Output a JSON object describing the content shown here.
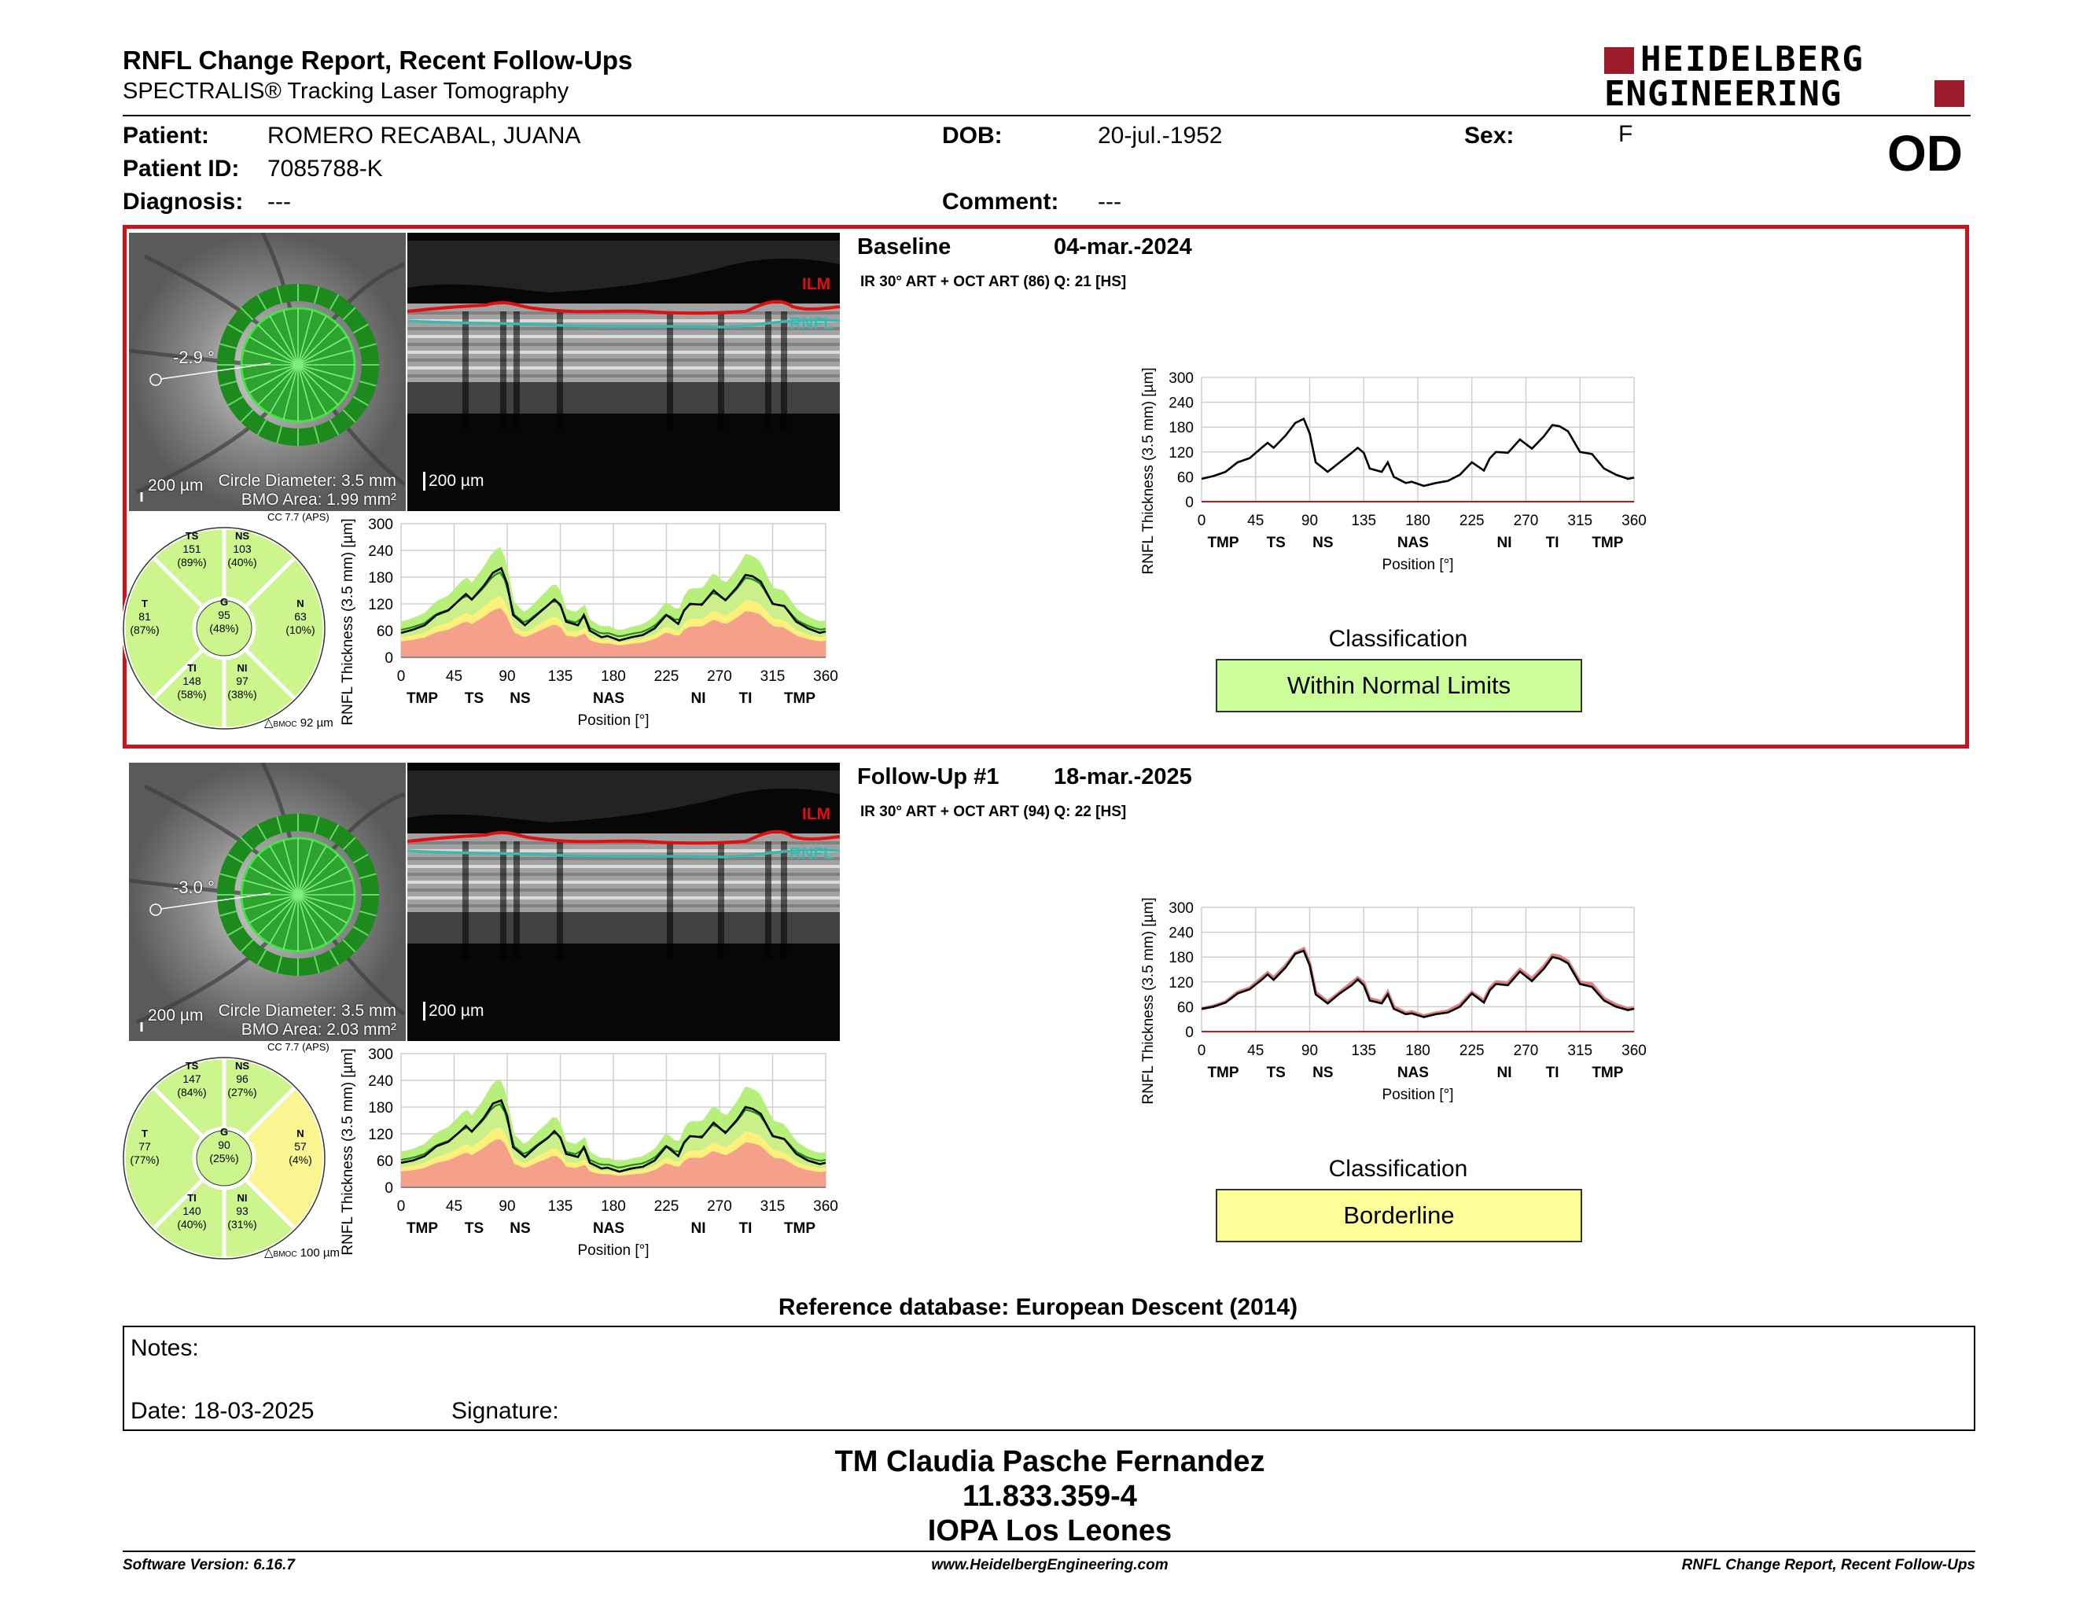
{
  "header": {
    "title": "RNFL Change Report, Recent Follow-Ups",
    "subtitle": "SPECTRALIS® Tracking Laser Tomography",
    "logo_line1": "HEIDELBERG",
    "logo_line2": "ENGINEERING",
    "eye": "OD"
  },
  "patient": {
    "patient_label": "Patient:",
    "patient_value": "ROMERO RECABAL, JUANA",
    "id_label": "Patient ID:",
    "id_value": "7085788-K",
    "diag_label": "Diagnosis:",
    "diag_value": "---",
    "dob_label": "DOB:",
    "dob_value": "20-jul.-1952",
    "comment_label": "Comment:",
    "comment_value": "---",
    "sex_label": "Sex:",
    "sex_value": "F"
  },
  "colors": {
    "frame_red": "#c8141c",
    "wnl_green": "#ccff99",
    "borderline_yellow": "#ffff99",
    "ilm_red": "#e01010",
    "rnfl_teal": "#3cb8b0"
  },
  "exams": [
    {
      "heading": "Baseline",
      "date": "04-mar.-2024",
      "acq": "IR 30° ART + OCT ART (86) Q: 21 [HS]",
      "angle": "-2.9 °",
      "scale_fundus": "200 µm",
      "circle_diameter": "Circle Diameter: 3.5 mm",
      "bmo_area": "BMO Area: 1.99 mm²",
      "scale_oct": "200 µm",
      "ilm": "ILM",
      "rnfl": "RNFL",
      "cc": "CC 7.7 (APS)",
      "bmoc": "92 µm",
      "sectors": {
        "TS": {
          "name": "TS",
          "value": "151",
          "pct": "(89%)",
          "status": "wnl"
        },
        "NS": {
          "name": "NS",
          "value": "103",
          "pct": "(40%)",
          "status": "wnl"
        },
        "T": {
          "name": "T",
          "value": "81",
          "pct": "(87%)",
          "status": "wnl"
        },
        "G": {
          "name": "G",
          "value": "95",
          "pct": "(48%)",
          "status": "wnl"
        },
        "N": {
          "name": "N",
          "value": "63",
          "pct": "(10%)",
          "status": "wnl"
        },
        "TI": {
          "name": "TI",
          "value": "148",
          "pct": "(58%)",
          "status": "wnl"
        },
        "NI": {
          "name": "NI",
          "value": "97",
          "pct": "(38%)",
          "status": "wnl"
        }
      },
      "classification_label": "Classification",
      "classification": "Within Normal Limits",
      "classification_status": "wnl"
    },
    {
      "heading": "Follow-Up #1",
      "date": "18-mar.-2025",
      "acq": "IR 30° ART + OCT ART (94) Q: 22 [HS]",
      "angle": "-3.0 °",
      "scale_fundus": "200 µm",
      "circle_diameter": "Circle Diameter: 3.5 mm",
      "bmo_area": "BMO Area: 2.03 mm²",
      "scale_oct": "200 µm",
      "ilm": "ILM",
      "rnfl": "RNFL",
      "cc": "CC 7.7 (APS)",
      "bmoc": "100 µm",
      "sectors": {
        "TS": {
          "name": "TS",
          "value": "147",
          "pct": "(84%)",
          "status": "wnl"
        },
        "NS": {
          "name": "NS",
          "value": "96",
          "pct": "(27%)",
          "status": "wnl"
        },
        "T": {
          "name": "T",
          "value": "77",
          "pct": "(77%)",
          "status": "wnl"
        },
        "G": {
          "name": "G",
          "value": "90",
          "pct": "(25%)",
          "status": "wnl"
        },
        "N": {
          "name": "N",
          "value": "57",
          "pct": "(4%)",
          "status": "borderline"
        },
        "TI": {
          "name": "TI",
          "value": "140",
          "pct": "(40%)",
          "status": "wnl"
        },
        "NI": {
          "name": "NI",
          "value": "93",
          "pct": "(31%)",
          "status": "wnl"
        }
      },
      "classification_label": "Classification",
      "classification": "Borderline",
      "classification_status": "borderline"
    }
  ],
  "chart_data": [
    {
      "type": "line",
      "title": "",
      "xlabel": "Position [°]",
      "ylabel": "RNFL Thickness (3.5 mm) [µm]",
      "xlim": [
        0,
        360
      ],
      "ylim": [
        0,
        300
      ],
      "xticks": [
        0,
        45,
        90,
        135,
        180,
        225,
        270,
        315,
        360
      ],
      "yticks": [
        0,
        60,
        120,
        180,
        240,
        300
      ],
      "region_labels": [
        {
          "label": "TMP",
          "x": 18
        },
        {
          "label": "TS",
          "x": 62
        },
        {
          "label": "NS",
          "x": 101
        },
        {
          "label": "NAS",
          "x": 176
        },
        {
          "label": "NI",
          "x": 252
        },
        {
          "label": "TI",
          "x": 292
        },
        {
          "label": "TMP",
          "x": 338
        }
      ],
      "grid": true,
      "x": [
        0,
        10,
        20,
        30,
        40,
        50,
        55,
        60,
        70,
        78,
        85,
        90,
        95,
        105,
        115,
        125,
        130,
        135,
        140,
        150,
        155,
        160,
        170,
        175,
        185,
        195,
        205,
        215,
        225,
        235,
        240,
        245,
        255,
        265,
        275,
        285,
        292,
        298,
        305,
        315,
        325,
        335,
        345,
        355,
        360
      ],
      "values": [
        55,
        62,
        72,
        95,
        105,
        130,
        142,
        130,
        160,
        190,
        200,
        165,
        95,
        72,
        95,
        118,
        130,
        118,
        80,
        72,
        95,
        60,
        45,
        48,
        38,
        45,
        50,
        65,
        95,
        75,
        105,
        120,
        118,
        150,
        128,
        158,
        185,
        182,
        170,
        120,
        115,
        80,
        65,
        55,
        58
      ]
    },
    {
      "type": "line",
      "title": "",
      "xlabel": "Position [°]",
      "ylabel": "RNFL Thickness (3.5 mm) [µm]",
      "xlim": [
        0,
        360
      ],
      "ylim": [
        0,
        300
      ],
      "xticks": [
        0,
        45,
        90,
        135,
        180,
        225,
        270,
        315,
        360
      ],
      "yticks": [
        0,
        60,
        120,
        180,
        240,
        300
      ],
      "region_labels": [
        {
          "label": "TMP",
          "x": 18
        },
        {
          "label": "TS",
          "x": 62
        },
        {
          "label": "NS",
          "x": 101
        },
        {
          "label": "NAS",
          "x": 176
        },
        {
          "label": "NI",
          "x": 252
        },
        {
          "label": "TI",
          "x": 292
        },
        {
          "label": "TMP",
          "x": 338
        }
      ],
      "grid": true,
      "x": [
        0,
        10,
        20,
        30,
        40,
        50,
        55,
        60,
        70,
        78,
        85,
        90,
        95,
        105,
        115,
        125,
        130,
        135,
        140,
        150,
        155,
        160,
        170,
        175,
        185,
        195,
        205,
        215,
        225,
        235,
        240,
        245,
        255,
        265,
        275,
        285,
        292,
        298,
        305,
        315,
        325,
        335,
        345,
        355,
        360
      ],
      "values": [
        55,
        60,
        70,
        92,
        102,
        125,
        138,
        125,
        155,
        188,
        195,
        160,
        90,
        68,
        92,
        112,
        126,
        112,
        75,
        68,
        90,
        55,
        42,
        44,
        35,
        42,
        46,
        60,
        92,
        70,
        100,
        115,
        112,
        145,
        122,
        152,
        180,
        176,
        165,
        115,
        108,
        75,
        60,
        52,
        55
      ]
    }
  ],
  "reference_db": "Reference database: European Descent (2014)",
  "notes": {
    "notes_label": "Notes:",
    "date_label": "Date: 18-03-2025",
    "signature_label": "Signature:"
  },
  "signature_block": {
    "name": "TM Claudia Pasche Fernandez",
    "id": "11.833.359-4",
    "org": "IOPA Los Leones"
  },
  "footer": {
    "version": "Software Version: 6.16.7",
    "url": "www.HeidelbergEngineering.com",
    "report": "RNFL Change Report, Recent Follow-Ups"
  }
}
